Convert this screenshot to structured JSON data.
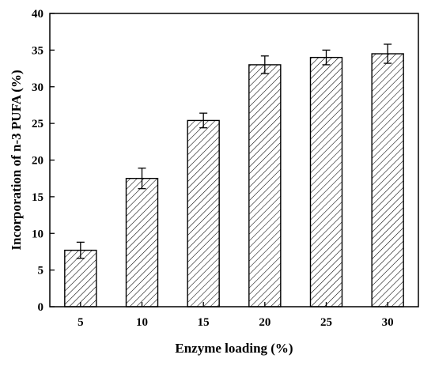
{
  "chart_data": {
    "type": "bar",
    "title": "",
    "xlabel": "Enzyme loading (%)",
    "ylabel": "Incorporation of n-3 PUFA (%)",
    "categories": [
      "5",
      "10",
      "15",
      "20",
      "25",
      "30"
    ],
    "values": [
      7.7,
      17.5,
      25.4,
      33.0,
      34.0,
      34.5
    ],
    "errors": [
      1.1,
      1.4,
      1.0,
      1.2,
      1.0,
      1.3
    ],
    "ylim": [
      0,
      40
    ],
    "yticks": [
      "0",
      "5",
      "10",
      "15",
      "20",
      "25",
      "30",
      "35",
      "40"
    ],
    "bar_fill": "hatched",
    "grid": false,
    "legend": "none",
    "colors": {
      "stroke": "#000000",
      "fill": "#ffffff"
    }
  }
}
